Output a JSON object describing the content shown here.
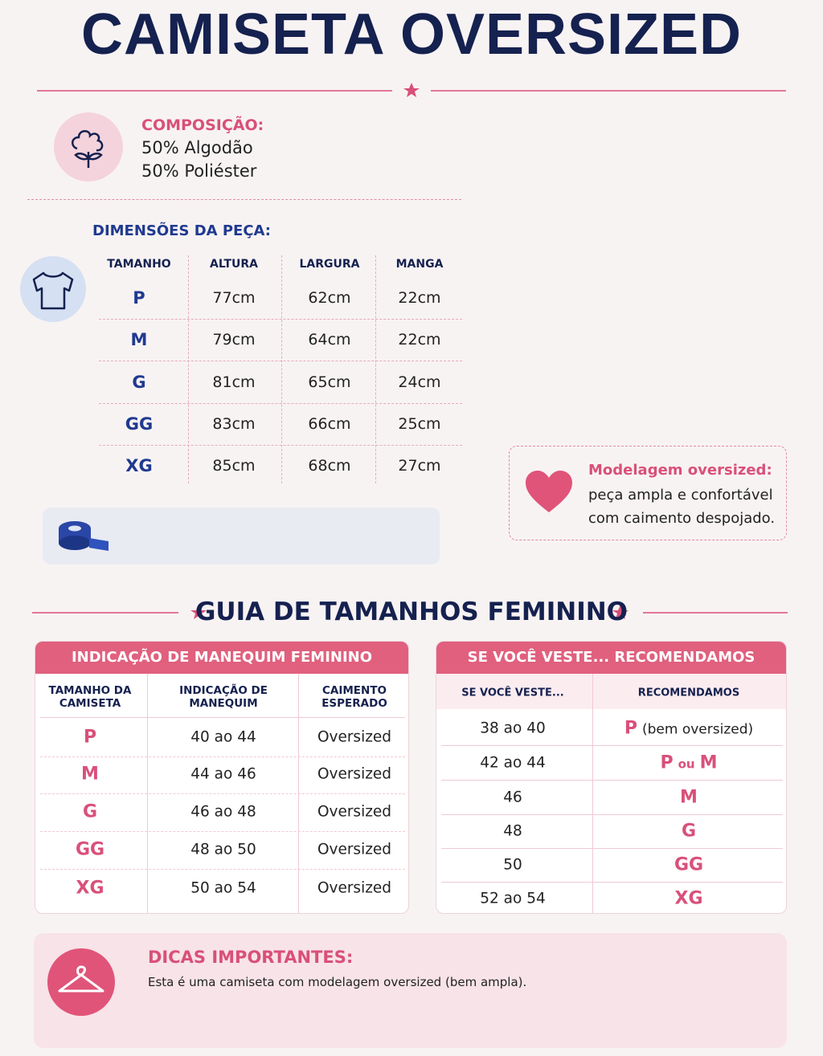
{
  "title": "CAMISETA OVERSIZED",
  "composition": {
    "heading": "COMPOSIÇÃO:",
    "lines": [
      "50% Algodão",
      "50% Poliéster"
    ]
  },
  "dimensions": {
    "heading": "DIMENSÕES DA PEÇA:",
    "columns": [
      "TAMANHO",
      "ALTURA",
      "LARGURA",
      "MANGA"
    ],
    "rows": [
      [
        "P",
        "77cm",
        "62cm",
        "22cm"
      ],
      [
        "M",
        "79cm",
        "64cm",
        "22cm"
      ],
      [
        "G",
        "81cm",
        "65cm",
        "24cm"
      ],
      [
        "GG",
        "83cm",
        "66cm",
        "25cm"
      ],
      [
        "XG",
        "85cm",
        "68cm",
        "27cm"
      ]
    ]
  },
  "fit_note": {
    "heading": "Modelagem oversized:",
    "lines": [
      "peça ampla e confortável",
      "com caimento despojado."
    ]
  },
  "guide_title": "GUIA DE TAMANHOS FEMININO",
  "mannequin_table": {
    "title": "INDICAÇÃO DE MANEQUIM FEMININO",
    "columns": [
      "TAMANHO DA CAMISETA",
      "INDICAÇÃO DE MANEQUIM",
      "CAIMENTO ESPERADO"
    ],
    "rows": [
      [
        "P",
        "40 ao 44",
        "Oversized"
      ],
      [
        "M",
        "44 ao 46",
        "Oversized"
      ],
      [
        "G",
        "46 ao 48",
        "Oversized"
      ],
      [
        "GG",
        "48 ao 50",
        "Oversized"
      ],
      [
        "XG",
        "50 ao 54",
        "Oversized"
      ]
    ]
  },
  "recommend_table": {
    "title": "SE VOCÊ VESTE... RECOMENDAMOS",
    "columns": [
      "SE VOCÊ VESTE...",
      "RECOMENDAMOS"
    ],
    "rows": [
      {
        "wears": "38 ao 40",
        "sizes": [
          "P"
        ],
        "note": "(bem oversized)"
      },
      {
        "wears": "42 ao 44",
        "sizes": [
          "P",
          "M"
        ],
        "joiner": "ou"
      },
      {
        "wears": "46",
        "sizes": [
          "M"
        ]
      },
      {
        "wears": "48",
        "sizes": [
          "G"
        ]
      },
      {
        "wears": "50",
        "sizes": [
          "GG"
        ]
      },
      {
        "wears": "52 ao 54",
        "sizes": [
          "XG"
        ]
      }
    ]
  },
  "tips": {
    "heading": "DICAS IMPORTANTES:",
    "text": "Esta é uma camiseta com modelagem oversized (bem ampla)."
  }
}
